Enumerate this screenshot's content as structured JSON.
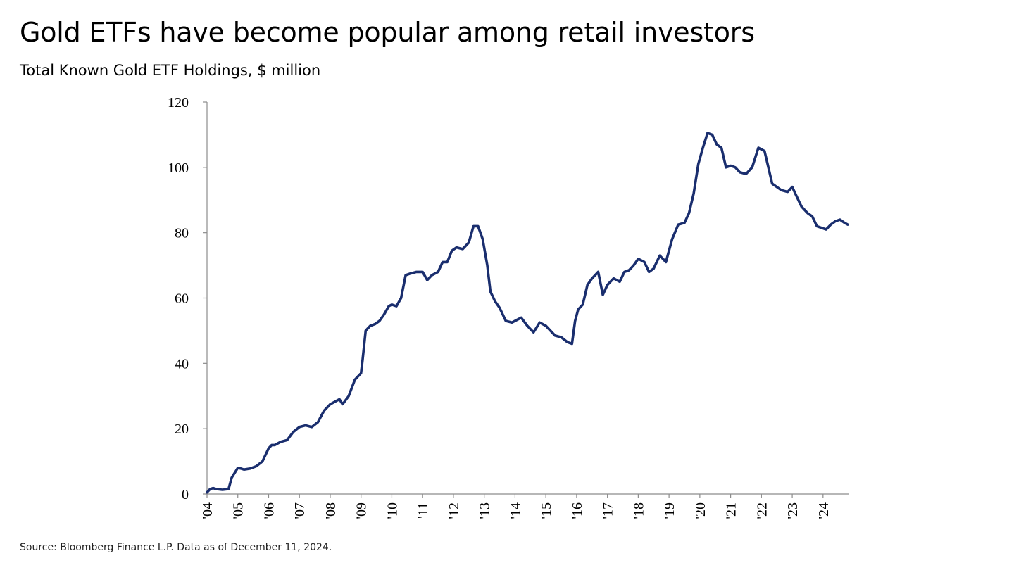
{
  "header": {
    "title": "Gold ETFs have become popular among retail investors",
    "subtitle": "Total Known Gold ETF Holdings, $ million"
  },
  "footer": {
    "source": "Source: Bloomberg Finance L.P. Data as of December 11, 2024."
  },
  "colors": {
    "line": "#1a2e6e",
    "axis": "#8c8c8c"
  },
  "chart_data": {
    "type": "line",
    "title": "Gold ETFs have become popular among retail investors",
    "subtitle": "Total Known Gold ETF Holdings, $ million",
    "xlabel": "",
    "ylabel": "",
    "xlim": [
      2004.0,
      2024.85
    ],
    "ylim": [
      0,
      120
    ],
    "yticks": [
      0,
      20,
      40,
      60,
      80,
      100,
      120
    ],
    "xtick_labels": [
      "'04",
      "'05",
      "'06",
      "'07",
      "'08",
      "'09",
      "'10",
      "'11",
      "'12",
      "'13",
      "'14",
      "'15",
      "'16",
      "'17",
      "'18",
      "'19",
      "'20",
      "'21",
      "'22",
      "'23",
      "'24"
    ],
    "grid": false,
    "legend": "none",
    "series": [
      {
        "x": [
          2004.0,
          2004.1,
          2004.2,
          2004.3,
          2004.5,
          2004.7,
          2004.8,
          2004.9,
          2005.0,
          2005.1,
          2005.2,
          2005.4,
          2005.6,
          2005.8,
          2006.0,
          2006.1,
          2006.2,
          2006.4,
          2006.6,
          2006.8,
          2007.0,
          2007.2,
          2007.4,
          2007.6,
          2007.8,
          2008.0,
          2008.2,
          2008.3,
          2008.4,
          2008.6,
          2008.8,
          2009.0,
          2009.05,
          2009.15,
          2009.3,
          2009.45,
          2009.6,
          2009.75,
          2009.9,
          2010.0,
          2010.15,
          2010.3,
          2010.45,
          2010.6,
          2010.8,
          2011.0,
          2011.15,
          2011.3,
          2011.5,
          2011.65,
          2011.8,
          2011.95,
          2012.1,
          2012.3,
          2012.5,
          2012.65,
          2012.8,
          2012.95,
          2013.1,
          2013.2,
          2013.35,
          2013.5,
          2013.7,
          2013.9,
          2014.0,
          2014.2,
          2014.4,
          2014.6,
          2014.8,
          2015.0,
          2015.15,
          2015.3,
          2015.5,
          2015.7,
          2015.85,
          2015.95,
          2016.05,
          2016.2,
          2016.35,
          2016.5,
          2016.7,
          2016.85,
          2017.0,
          2017.2,
          2017.4,
          2017.55,
          2017.7,
          2017.85,
          2018.0,
          2018.2,
          2018.35,
          2018.5,
          2018.7,
          2018.9,
          2019.1,
          2019.3,
          2019.5,
          2019.65,
          2019.8,
          2019.95,
          2020.1,
          2020.25,
          2020.4,
          2020.55,
          2020.7,
          2020.85,
          2021.0,
          2021.15,
          2021.3,
          2021.5,
          2021.7,
          2021.9,
          2022.1,
          2022.2,
          2022.35,
          2022.5,
          2022.65,
          2022.85,
          2023.0,
          2023.15,
          2023.3,
          2023.5,
          2023.65,
          2023.8,
          2023.95,
          2024.1,
          2024.25,
          2024.4,
          2024.55,
          2024.7,
          2024.8
        ],
        "values": [
          0.5,
          1.5,
          1.8,
          1.5,
          1.3,
          1.5,
          5.0,
          6.5,
          8.0,
          7.8,
          7.5,
          7.8,
          8.5,
          10.0,
          14.0,
          15.0,
          15.0,
          16.0,
          16.5,
          19.0,
          20.5,
          21.0,
          20.5,
          22.0,
          25.5,
          27.5,
          28.5,
          29.0,
          27.5,
          30.0,
          35.0,
          37.0,
          41.0,
          50.0,
          51.5,
          52.0,
          53.0,
          55.0,
          57.5,
          58.0,
          57.5,
          60.0,
          67.0,
          67.5,
          68.0,
          68.0,
          65.5,
          67.0,
          68.0,
          71.0,
          71.0,
          74.5,
          75.5,
          75.0,
          77.0,
          82.0,
          82.0,
          78.0,
          70.0,
          62.0,
          59.0,
          57.0,
          53.0,
          52.5,
          53.0,
          54.0,
          51.5,
          49.5,
          52.5,
          51.5,
          50.0,
          48.5,
          48.0,
          46.5,
          46.0,
          53.0,
          56.5,
          58.0,
          64.0,
          66.0,
          68.0,
          61.0,
          64.0,
          66.0,
          65.0,
          68.0,
          68.5,
          70.0,
          72.0,
          71.0,
          68.0,
          69.0,
          73.0,
          71.0,
          78.0,
          82.5,
          83.0,
          86.0,
          92.0,
          101.0,
          106.0,
          110.5,
          110.0,
          107.0,
          106.0,
          100.0,
          100.5,
          100.0,
          98.5,
          98.0,
          100.0,
          106.0,
          105.0,
          101.0,
          95.0,
          94.0,
          93.0,
          92.5,
          94.0,
          91.0,
          88.0,
          86.0,
          85.0,
          82.0,
          81.5,
          81.0,
          82.5,
          83.5,
          84.0,
          83.0,
          82.5
        ]
      }
    ]
  }
}
